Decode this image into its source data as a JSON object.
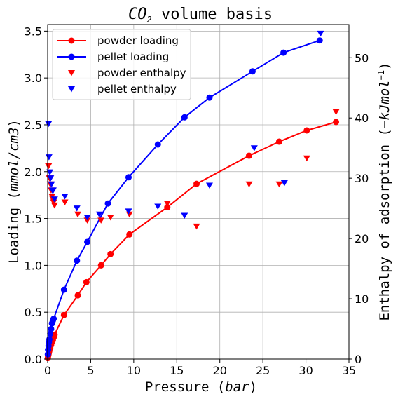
{
  "chart_data": {
    "type": "line",
    "title_main": "CO",
    "title_sub": "2",
    "title_rest": " volume basis",
    "xlabel_prefix": "Pressure (",
    "xlabel_unit": "bar",
    "xlabel_suffix": ")",
    "ylabel_prefix": "Loading (",
    "ylabel_unit": "mmol/cm3",
    "ylabel_suffix": ")",
    "y2label_prefix": "Enthalpy of adsorption (",
    "y2label_unit": "−kJmol",
    "y2label_sup": "−1",
    "y2label_suffix": ")",
    "xlim": [
      0,
      35
    ],
    "ylim": [
      0,
      3.57
    ],
    "y2lim": [
      0,
      55.5
    ],
    "xticks": [
      "0",
      "5",
      "10",
      "15",
      "20",
      "25",
      "30",
      "35"
    ],
    "yticks": [
      "0.0",
      "0.5",
      "1.0",
      "1.5",
      "2.0",
      "2.5",
      "3.0",
      "3.5"
    ],
    "y2ticks": [
      "0",
      "10",
      "20",
      "30",
      "40",
      "50"
    ],
    "grid": true,
    "legend_position": "upper-left",
    "series": [
      {
        "name": "powder loading",
        "axis": "left",
        "style": "line-circle",
        "color": "#ff0000",
        "x": [
          0.02,
          0.05,
          0.1,
          0.15,
          0.2,
          0.3,
          0.4,
          0.5,
          0.6,
          0.7,
          0.8,
          1.9,
          3.5,
          4.5,
          6.2,
          7.3,
          9.5,
          13.9,
          17.3,
          23.4,
          26.9,
          30.1,
          33.5
        ],
        "y": [
          0.01,
          0.03,
          0.05,
          0.07,
          0.09,
          0.12,
          0.15,
          0.18,
          0.2,
          0.23,
          0.26,
          0.47,
          0.68,
          0.82,
          1.0,
          1.12,
          1.33,
          1.62,
          1.87,
          2.17,
          2.32,
          2.44,
          2.53
        ]
      },
      {
        "name": "pellet loading",
        "axis": "left",
        "style": "line-circle",
        "color": "#0000ff",
        "x": [
          0.02,
          0.05,
          0.1,
          0.15,
          0.2,
          0.3,
          0.4,
          0.5,
          0.6,
          0.7,
          1.9,
          3.4,
          4.6,
          7.0,
          9.4,
          12.8,
          15.9,
          18.8,
          23.8,
          27.4,
          31.6
        ],
        "y": [
          0.05,
          0.1,
          0.14,
          0.18,
          0.21,
          0.27,
          0.32,
          0.38,
          0.41,
          0.43,
          0.74,
          1.05,
          1.25,
          1.66,
          1.94,
          2.29,
          2.58,
          2.79,
          3.07,
          3.27,
          3.4
        ]
      },
      {
        "name": "powder enthalpy",
        "axis": "right",
        "style": "triangle-down",
        "color": "#ff0000",
        "x": [
          0.1,
          0.2,
          0.3,
          0.4,
          0.5,
          0.6,
          0.7,
          0.8,
          2.0,
          3.5,
          4.6,
          6.2,
          7.3,
          9.5,
          13.9,
          17.3,
          23.4,
          26.9,
          30.1,
          33.5
        ],
        "y": [
          32,
          30,
          29,
          28,
          27,
          26.5,
          26,
          25.5,
          26,
          24,
          23,
          23,
          23.5,
          24,
          25.8,
          22,
          29,
          29,
          33.3,
          41
        ]
      },
      {
        "name": "pellet enthalpy",
        "axis": "right",
        "style": "triangle-down",
        "color": "#0000ff",
        "x": [
          0.1,
          0.15,
          0.25,
          0.35,
          0.45,
          0.55,
          0.65,
          0.8,
          2.0,
          3.4,
          4.6,
          6.0,
          9.4,
          12.8,
          15.9,
          18.8,
          24.0,
          27.5,
          31.7
        ],
        "y": [
          39,
          33.5,
          31,
          30,
          29,
          28,
          28,
          26.5,
          27,
          25,
          23.5,
          24,
          24.5,
          25.3,
          23.8,
          28.8,
          35,
          29.2,
          54
        ]
      }
    ]
  }
}
